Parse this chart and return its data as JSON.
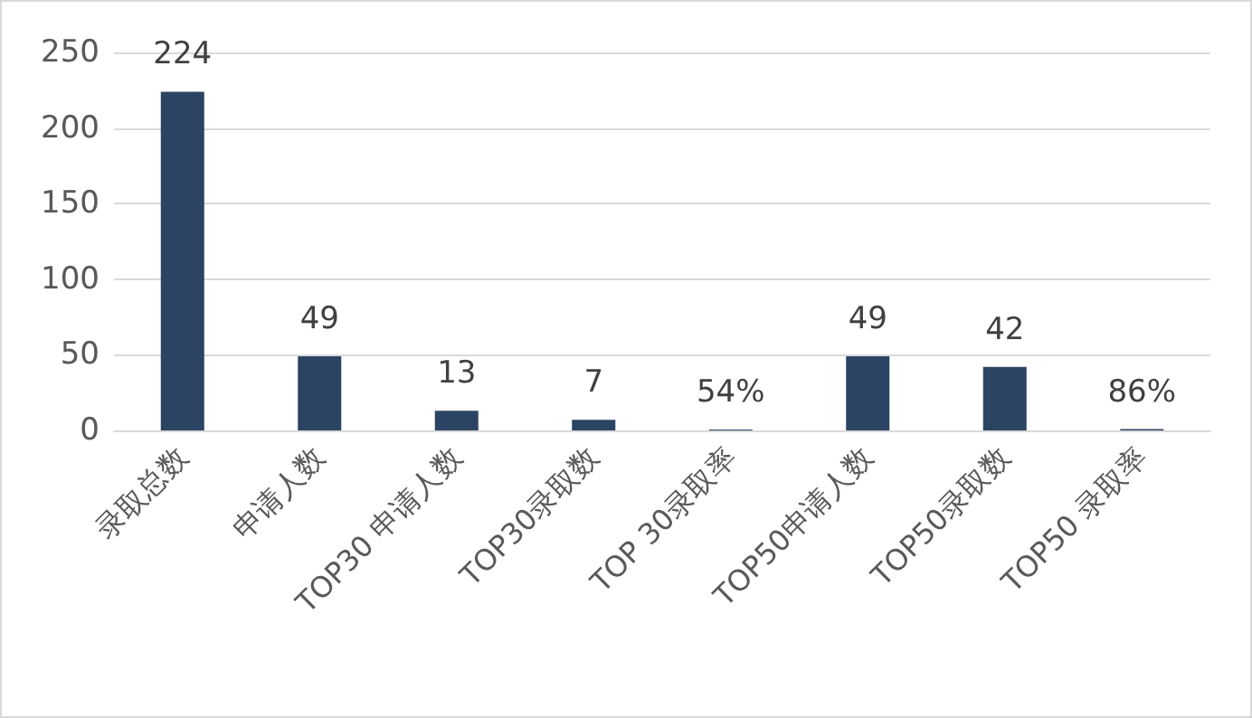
{
  "chart_data": {
    "type": "bar",
    "categories": [
      "录取总数",
      "申请人数",
      "TOP30 申请人数",
      "TOP30录取数",
      "TOP 30录取率",
      "TOP50申请人数",
      "TOP50录取数",
      "TOP50 录取率"
    ],
    "values": [
      224,
      49,
      13,
      7,
      0.54,
      49,
      42,
      0.86
    ],
    "value_labels": [
      "224",
      "49",
      "13",
      "7",
      "54%",
      "49",
      "42",
      "86%"
    ],
    "color": "#2b4463",
    "ylim": [
      0,
      250
    ],
    "yticks": [
      0,
      50,
      100,
      150,
      200,
      250
    ],
    "grid": "y"
  }
}
